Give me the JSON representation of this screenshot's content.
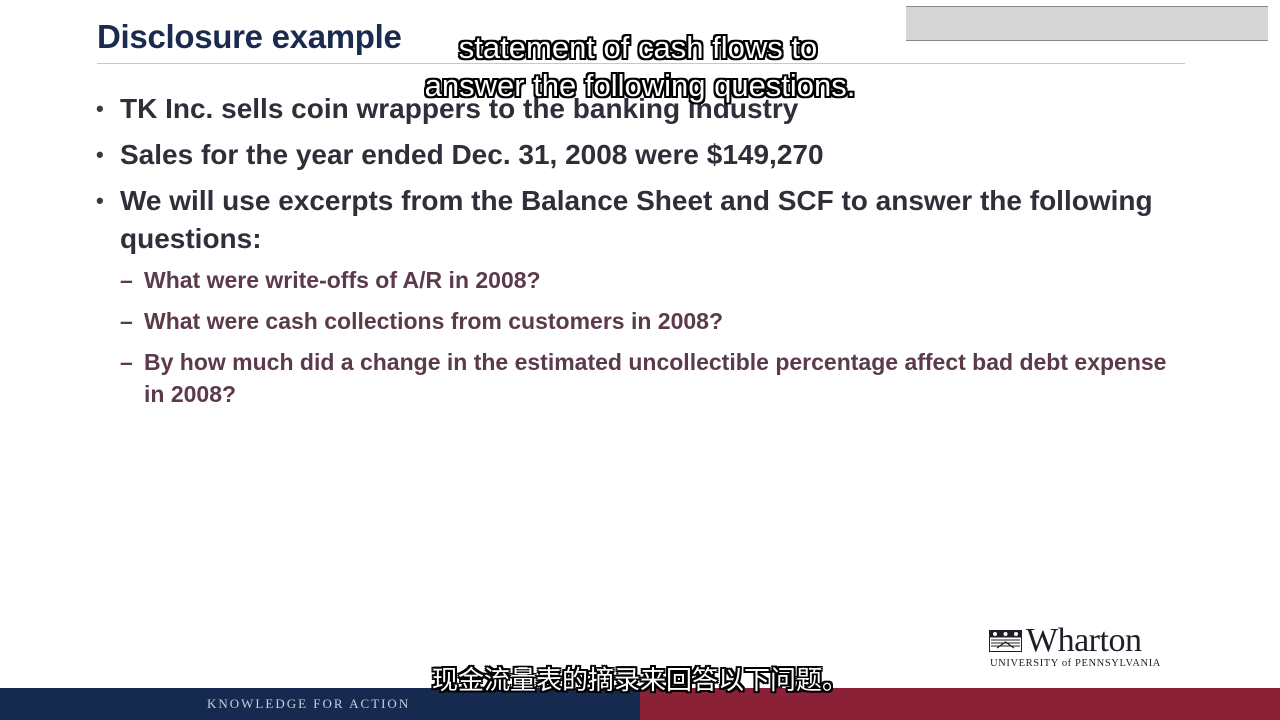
{
  "slide": {
    "title": "Disclosure example",
    "bullets": [
      "TK Inc. sells coin wrappers to the banking industry",
      "Sales for the year ended Dec. 31, 2008 were $149,270",
      "We will use excerpts from the Balance Sheet and SCF to answer the following questions:"
    ],
    "sub_bullets": [
      "What were write-offs of A/R in 2008?",
      "What were cash collections from customers in 2008?",
      "By how much did a change in the estimated uncollectible percentage affect bad debt expense in 2008?"
    ],
    "bullet_marker": "•",
    "sub_marker": "–"
  },
  "captions": {
    "english_line1": "statement of cash flows to",
    "english_line2": "answer the following questions.",
    "chinese": "现金流量表的摘录来回答以下问题。"
  },
  "logo": {
    "wordmark": "Wharton",
    "subtitle": "UNIVERSITY of PENNSYLVANIA"
  },
  "footer": {
    "tagline": "KNOWLEDGE FOR ACTION"
  },
  "colors": {
    "title": "#1a2b4f",
    "footer_navy": "#16294f",
    "footer_red": "#8b2136",
    "sub_text": "#5b3a4c"
  }
}
